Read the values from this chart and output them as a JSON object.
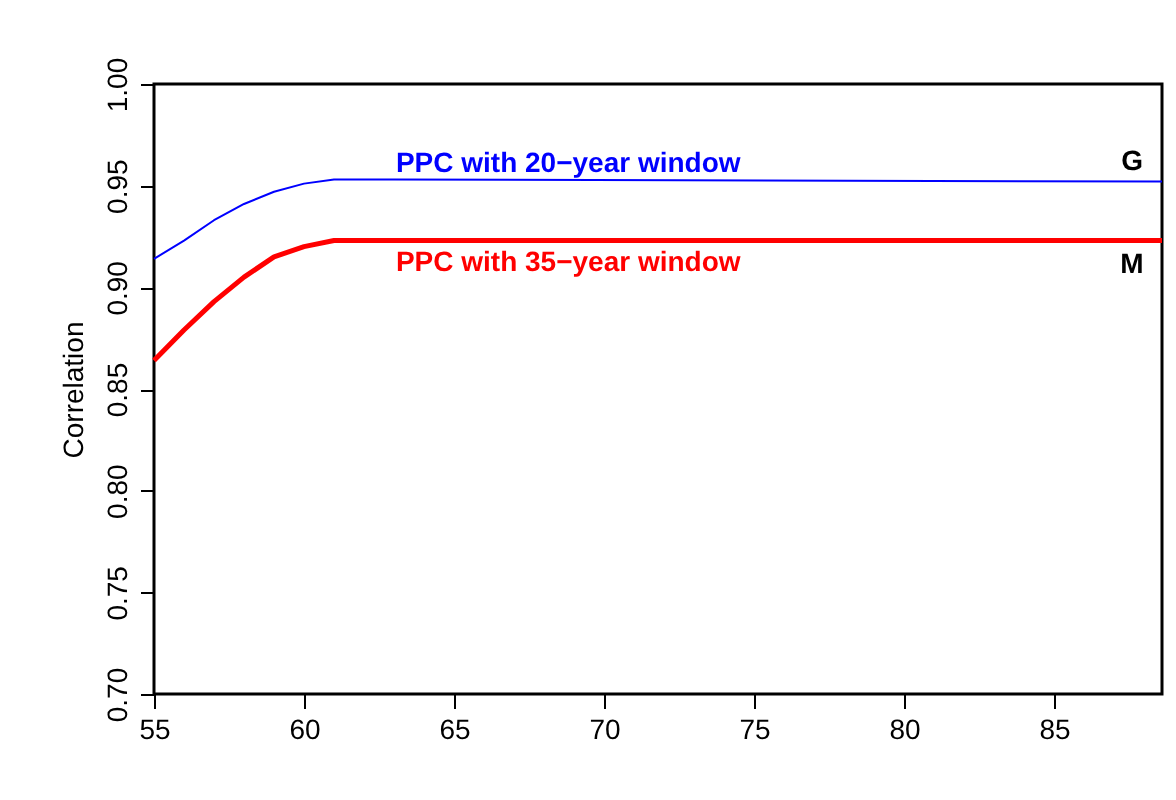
{
  "chart_data": {
    "type": "line",
    "ylabel": "Correlation",
    "xlim": [
      55,
      88.6
    ],
    "ylim": [
      0.7,
      1.0
    ],
    "xticks": [
      55,
      60,
      65,
      70,
      75,
      80,
      85
    ],
    "yticks": [
      {
        "value": 0.7,
        "label": "0.70"
      },
      0.75,
      {
        "value": 0.8,
        "label": "0.80"
      },
      0.85,
      {
        "value": 0.9,
        "label": "0.90"
      },
      0.95,
      {
        "value": 1.0,
        "label": "1.00"
      }
    ],
    "grid": false,
    "marker": "none",
    "line_style": "solid",
    "series": [
      {
        "name": "PPC with 20−year window",
        "color": "#0000ff",
        "x": [
          55,
          56,
          57,
          58,
          59,
          60,
          61,
          63,
          88.6
        ],
        "values": [
          0.914,
          0.923,
          0.933,
          0.941,
          0.947,
          0.951,
          0.953,
          0.953,
          0.952
        ]
      },
      {
        "name": "PPC with 35−year window",
        "color": "#ff0000",
        "x": [
          55,
          56,
          57,
          58,
          59,
          60,
          61,
          63,
          88.6
        ],
        "values": [
          0.864,
          0.879,
          0.893,
          0.905,
          0.915,
          0.92,
          0.923,
          0.923,
          0.923
        ]
      }
    ],
    "annotations": [
      {
        "text": "G",
        "x": 87.6,
        "y": 0.952
      },
      {
        "text": "M",
        "x": 87.6,
        "y": 0.923
      }
    ]
  }
}
